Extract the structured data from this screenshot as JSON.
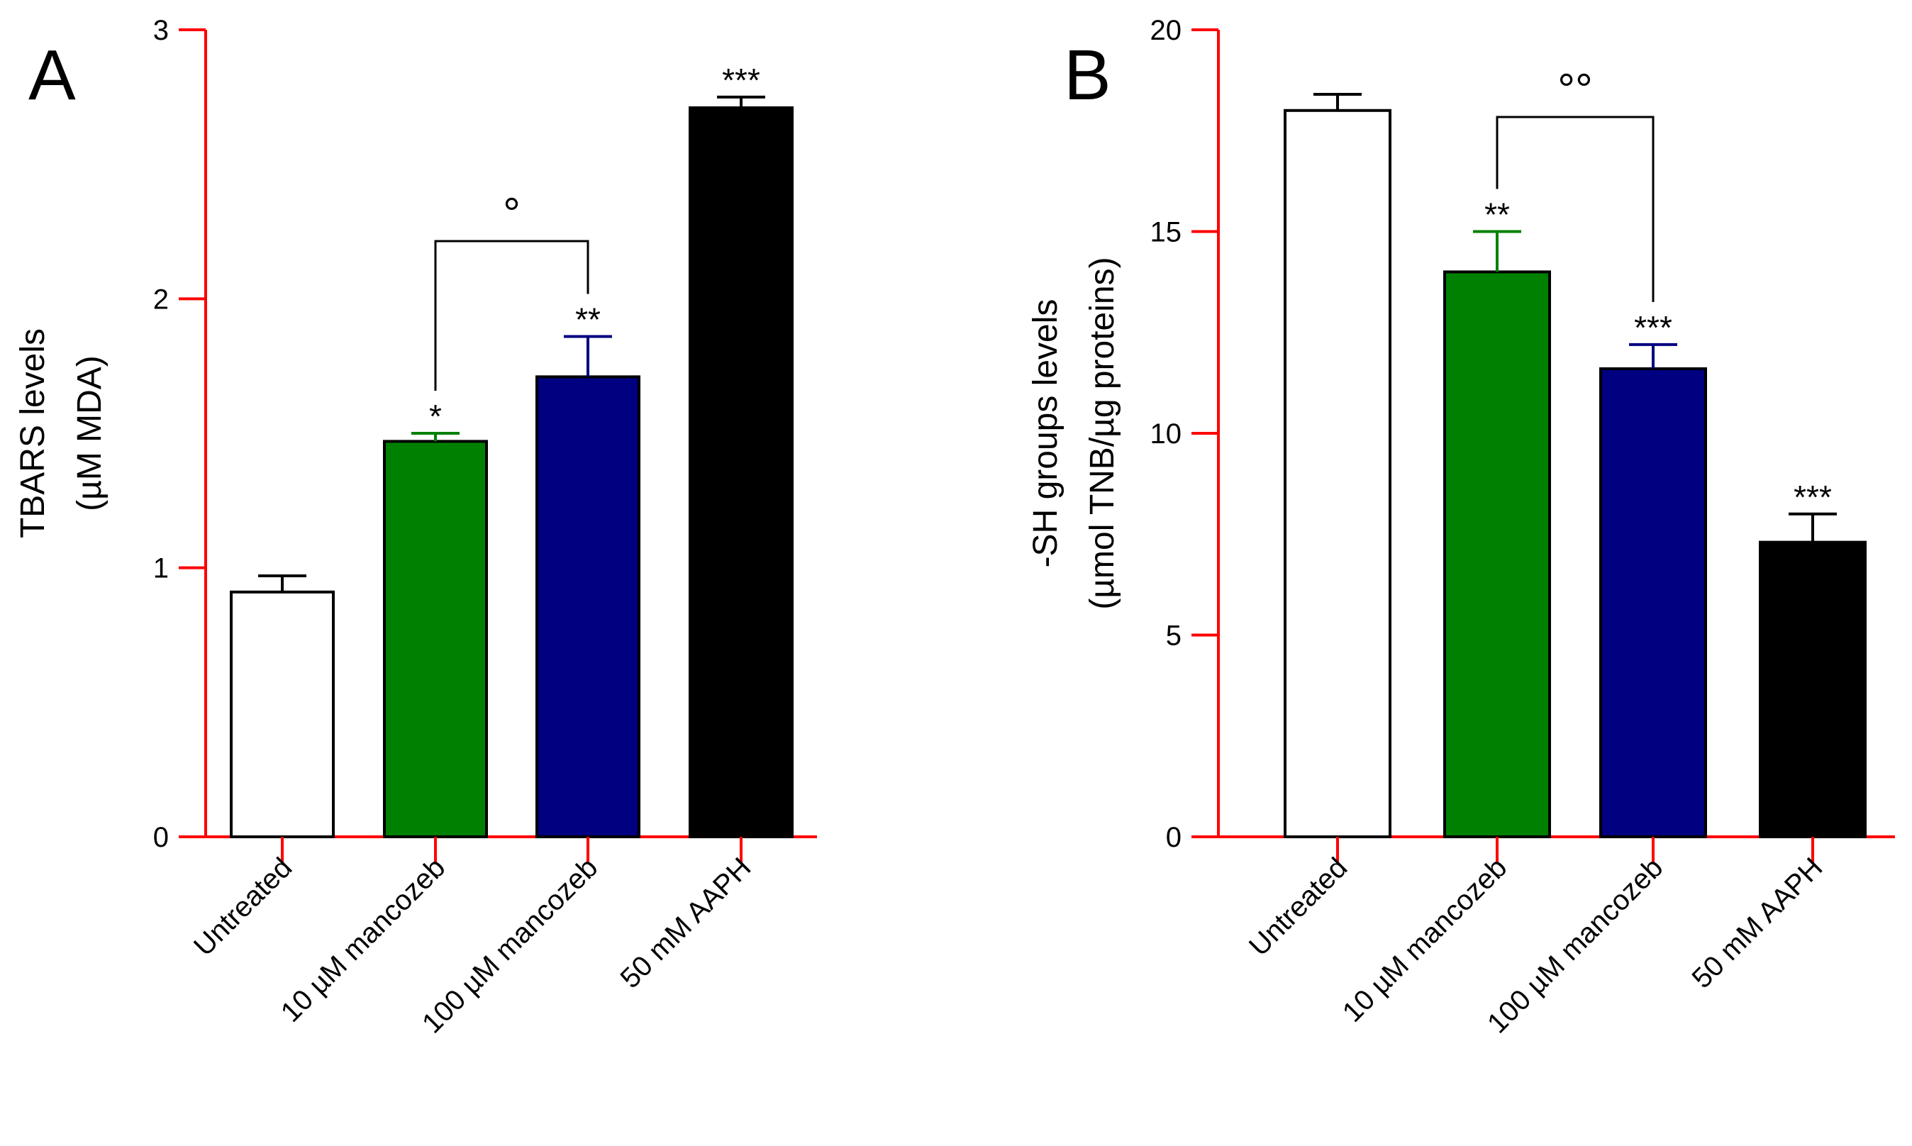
{
  "chart_data": [
    {
      "type": "bar",
      "panel_label": "A",
      "categories": [
        "Untreated",
        "10 µM mancozeb",
        "100 µM mancozeb",
        "50 mM AAPH"
      ],
      "values": [
        0.91,
        1.47,
        1.71,
        2.71
      ],
      "errors": [
        0.06,
        0.03,
        0.15,
        0.04
      ],
      "bar_colors": [
        "#ffffff",
        "#008000",
        "#000080",
        "#000000"
      ],
      "significance": [
        "",
        "*",
        "**",
        "***"
      ],
      "comparison": {
        "from": 1,
        "to": 2,
        "label": "°"
      },
      "ylabel": "TBARS levels",
      "ylabel_sub": "(µM MDA)",
      "ylim": [
        0,
        3
      ],
      "yticks": [
        0,
        1,
        2,
        3
      ],
      "ytick_labels": [
        "0",
        "1",
        "2",
        "3"
      ],
      "axis_color": "#ff0000"
    },
    {
      "type": "bar",
      "panel_label": "B",
      "categories": [
        "Untreated",
        "10 µM mancozeb",
        "100 µM mancozeb",
        "50 mM AAPH"
      ],
      "values": [
        18.0,
        14.0,
        11.6,
        7.3
      ],
      "errors": [
        0.4,
        1.0,
        0.6,
        0.7
      ],
      "bar_colors": [
        "#ffffff",
        "#008000",
        "#000080",
        "#000000"
      ],
      "significance": [
        "",
        "**",
        "***",
        "***"
      ],
      "comparison": {
        "from": 1,
        "to": 2,
        "label": "°°"
      },
      "ylabel": "-SH groups levels",
      "ylabel_sub": "(µmol TNB/µg proteins)",
      "ylim": [
        0,
        20
      ],
      "yticks": [
        0,
        5,
        10,
        15,
        20
      ],
      "ytick_labels": [
        "0",
        "5",
        "10",
        "15",
        "20"
      ],
      "axis_color": "#ff0000"
    }
  ]
}
